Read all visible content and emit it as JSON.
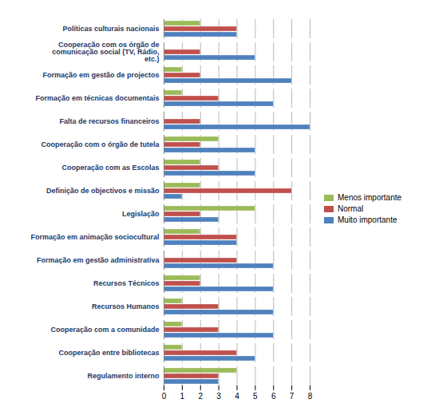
{
  "chart_data": {
    "type": "bar",
    "orientation": "horizontal",
    "grid": true,
    "legend": "right",
    "categories": [
      "Políticas culturais nacionais",
      "Cooperação com os órgão de comunicação social (TV, Rádio, etc.)",
      "Formação em gestão de projectos",
      "Formação em técnicas documentais",
      "Falta de recursos financeiros",
      "Cooperação com o órgão de tutela",
      "Cooperação com as Escolas",
      "Definição de objectivos e missão",
      "Legislação",
      "Formação em animação sociocultural",
      "Formação em gestão administrativa",
      "Recursos Técnicos",
      "Recursos Humanos",
      "Cooperação com a comunidade",
      "Cooperação entre bibliotecas",
      "Regulamento interno"
    ],
    "series": [
      {
        "name": "Menos importante",
        "color": "#9bbb59",
        "values": [
          2,
          0,
          1,
          1,
          0,
          3,
          2,
          2,
          5,
          2,
          0,
          2,
          1,
          1,
          1,
          4
        ]
      },
      {
        "name": "Normal",
        "color": "#c0504d",
        "values": [
          4,
          2,
          2,
          3,
          2,
          2,
          3,
          7,
          2,
          4,
          4,
          2,
          3,
          3,
          4,
          3
        ]
      },
      {
        "name": "Muito importante",
        "color": "#4f81bd",
        "values": [
          4,
          5,
          7,
          6,
          8,
          5,
          5,
          1,
          3,
          4,
          6,
          6,
          6,
          6,
          5,
          3
        ]
      }
    ],
    "xlim": [
      0,
      8
    ],
    "xticks": [
      0,
      1,
      2,
      3,
      4,
      5,
      6,
      7,
      8
    ]
  }
}
